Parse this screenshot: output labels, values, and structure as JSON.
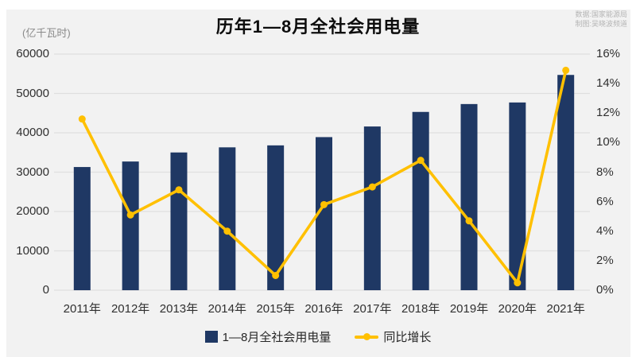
{
  "title": "历年1—8月全社会用电量",
  "unit_label": "(亿千瓦时)",
  "source": {
    "line1": "数据:国家能源局",
    "line2": "制图:吴晓波频道"
  },
  "legend": {
    "bar_label": "1—8月全社会用电量",
    "line_label": "同比增长"
  },
  "colors": {
    "bar": "#1f3864",
    "line": "#ffc000",
    "panel_bg": "#f2f2f2",
    "grid": "#dfdfdf",
    "axis_text": "#303030",
    "muted_text": "#8a8a8a",
    "source_text": "#b5b5b5"
  },
  "chart_data": {
    "type": "bar",
    "subtype": "bar+line combo, dual axis",
    "title": "历年1—8月全社会用电量",
    "categories": [
      "2011年",
      "2012年",
      "2013年",
      "2014年",
      "2015年",
      "2016年",
      "2017年",
      "2018年",
      "2019年",
      "2020年",
      "2021年"
    ],
    "series": [
      {
        "name": "1—8月全社会用电量",
        "type": "bar",
        "axis": "left",
        "unit": "亿千瓦时",
        "values": [
          31300,
          32700,
          35000,
          36300,
          36800,
          38900,
          41600,
          45300,
          47300,
          47700,
          54700
        ]
      },
      {
        "name": "同比增长",
        "type": "line",
        "axis": "right",
        "unit": "%",
        "values": [
          11.6,
          5.1,
          6.8,
          4.0,
          1.0,
          5.8,
          7.0,
          8.8,
          4.7,
          0.5,
          14.9
        ]
      }
    ],
    "left_axis": {
      "label": "(亿千瓦时)",
      "min": 0,
      "max": 60000,
      "step": 10000,
      "ticks": [
        "60000",
        "50000",
        "40000",
        "30000",
        "20000",
        "10000",
        "0"
      ]
    },
    "right_axis": {
      "label": "同比增长",
      "min": 0,
      "max": 16,
      "step": 2,
      "ticks": [
        "16%",
        "14%",
        "12%",
        "10%",
        "8%",
        "6%",
        "4%",
        "2%",
        "0%"
      ]
    },
    "grid": "horizontal gridlines at left-axis intervals",
    "legend_position": "bottom-center"
  }
}
